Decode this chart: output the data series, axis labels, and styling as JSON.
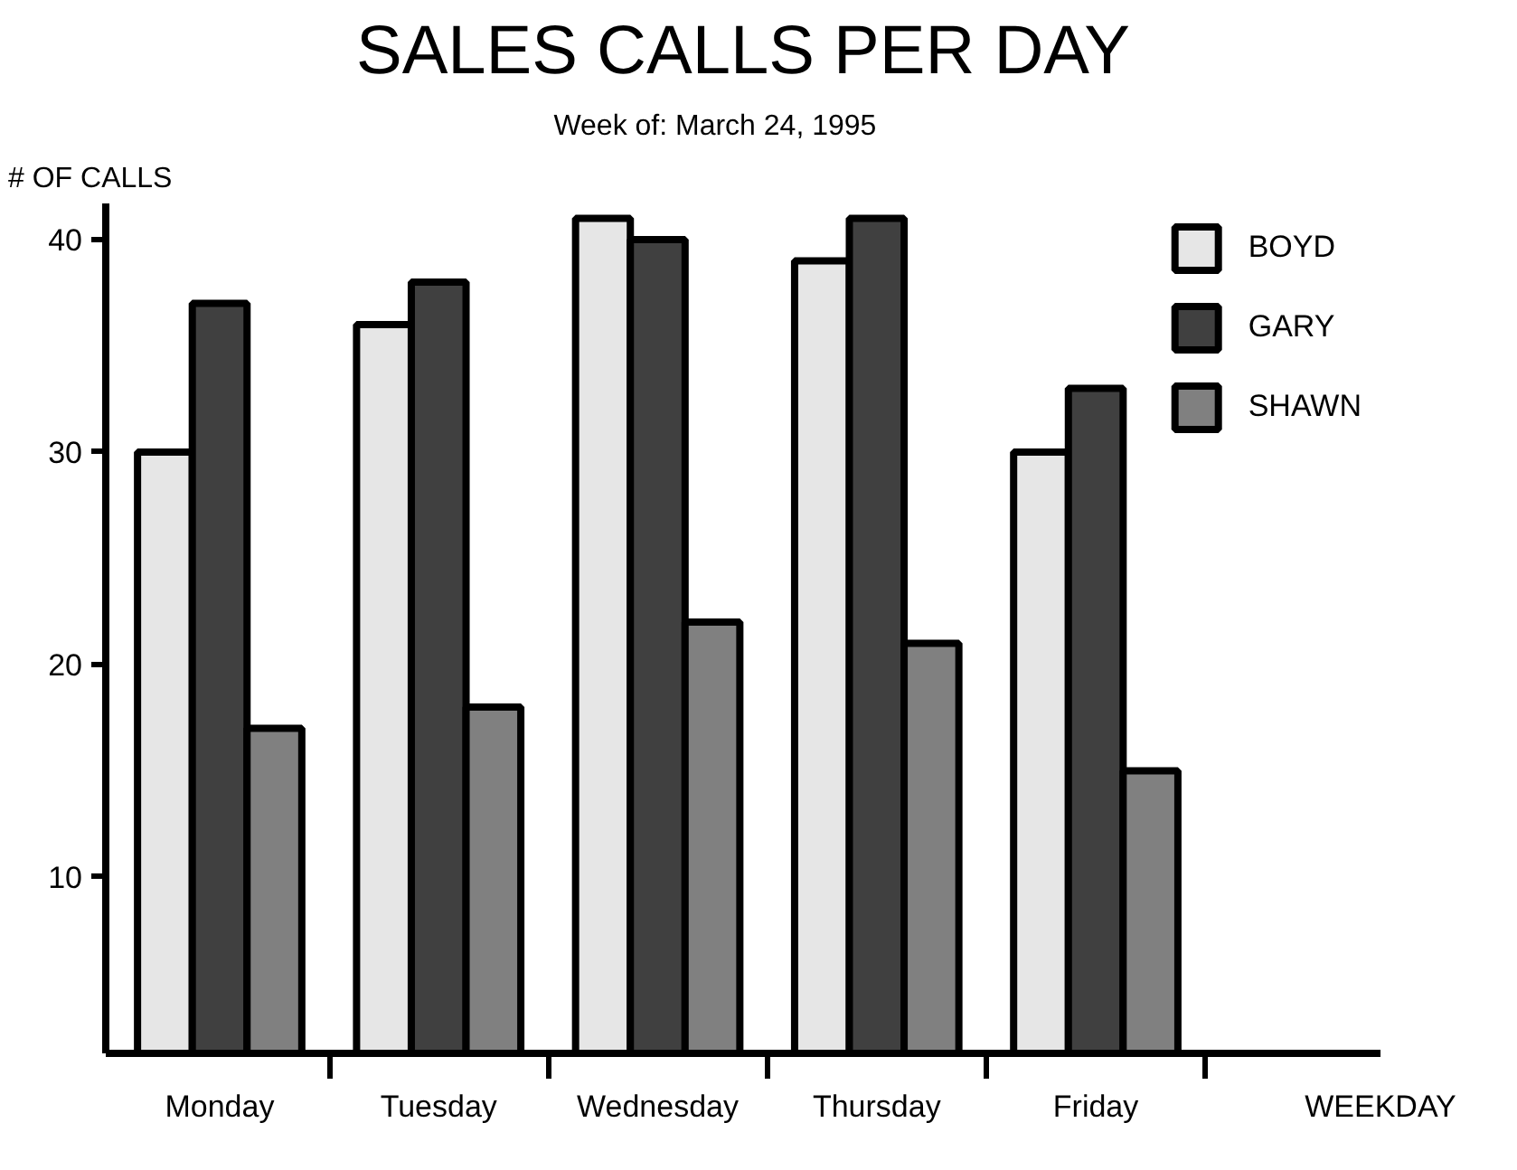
{
  "chart_data": {
    "type": "bar",
    "title": "SALES CALLS PER DAY",
    "subtitle": "Week of:        March 24, 1995",
    "xlabel": "WEEKDAY",
    "ylabel": "# OF CALLS",
    "categories": [
      "Monday",
      "Tuesday",
      "Wednesday",
      "Thursday",
      "Friday"
    ],
    "series": [
      {
        "name": "BOYD",
        "color": "#e6e6e6",
        "values": [
          30,
          36,
          41,
          39,
          30
        ]
      },
      {
        "name": "GARY",
        "color": "#404040",
        "values": [
          37,
          38,
          40,
          41,
          33
        ]
      },
      {
        "name": "SHAWN",
        "color": "#808080",
        "values": [
          17,
          18,
          22,
          21,
          15
        ]
      }
    ],
    "ylim": [
      1.7,
      41.7
    ],
    "yticks": [
      10,
      20,
      30,
      40
    ],
    "grid": false,
    "legend": "top right"
  }
}
